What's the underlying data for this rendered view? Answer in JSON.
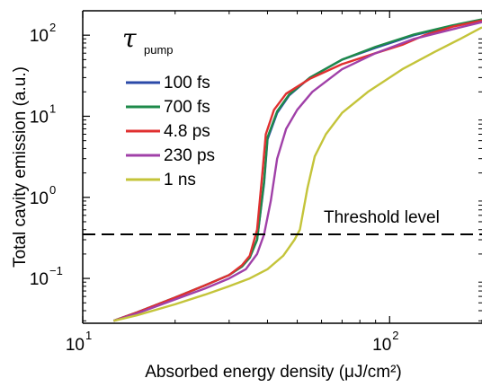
{
  "chart_data": {
    "type": "line",
    "xlabel": "Absorbed energy density (μJ/cm²)",
    "ylabel": "Total cavity emission (a.u.)",
    "x_scale": "log",
    "y_scale": "log",
    "xlim": [
      10,
      200
    ],
    "ylim": [
      0.028,
      200
    ],
    "x_ticks": [
      {
        "value": 10,
        "base": "10",
        "exp": "1"
      },
      {
        "value": 100,
        "base": "10",
        "exp": "2"
      }
    ],
    "y_ticks": [
      {
        "value": 0.1,
        "base": "10",
        "exp": "−1"
      },
      {
        "value": 1,
        "base": "10",
        "exp": "0"
      },
      {
        "value": 10,
        "base": "10",
        "exp": "1"
      },
      {
        "value": 100,
        "base": "10",
        "exp": "2"
      }
    ],
    "legend_title": {
      "symbol": "τ",
      "subscript": "pump"
    },
    "legend_position": "top-left",
    "series": [
      {
        "name": "100 fs",
        "color": "#2b4aa8",
        "points": [
          [
            12.6,
            0.03
          ],
          [
            15,
            0.038
          ],
          [
            20,
            0.058
          ],
          [
            25,
            0.082
          ],
          [
            30,
            0.11
          ],
          [
            33,
            0.14
          ],
          [
            35,
            0.18
          ],
          [
            37,
            0.3
          ],
          [
            39,
            1.5
          ],
          [
            40,
            5.2
          ],
          [
            43,
            11
          ],
          [
            47,
            18
          ],
          [
            55,
            30
          ],
          [
            70,
            50
          ],
          [
            90,
            70
          ],
          [
            120,
            100
          ],
          [
            160,
            130
          ],
          [
            200,
            155
          ]
        ]
      },
      {
        "name": "700 fs",
        "color": "#1e8a4a",
        "points": [
          [
            12.6,
            0.03
          ],
          [
            15,
            0.038
          ],
          [
            20,
            0.058
          ],
          [
            25,
            0.082
          ],
          [
            30,
            0.11
          ],
          [
            33,
            0.14
          ],
          [
            35,
            0.18
          ],
          [
            37,
            0.3
          ],
          [
            39,
            1.6
          ],
          [
            40,
            5.5
          ],
          [
            43,
            11.5
          ],
          [
            47,
            18.5
          ],
          [
            55,
            30
          ],
          [
            70,
            50
          ],
          [
            90,
            72
          ],
          [
            120,
            102
          ],
          [
            160,
            132
          ],
          [
            200,
            157
          ]
        ]
      },
      {
        "name": "4.8 ps",
        "color": "#e03030",
        "points": [
          [
            12.6,
            0.03
          ],
          [
            15,
            0.038
          ],
          [
            20,
            0.058
          ],
          [
            25,
            0.082
          ],
          [
            30,
            0.11
          ],
          [
            33,
            0.145
          ],
          [
            35,
            0.19
          ],
          [
            37,
            0.4
          ],
          [
            38.5,
            2
          ],
          [
            39.5,
            6
          ],
          [
            42,
            12
          ],
          [
            46,
            19
          ],
          [
            55,
            29
          ],
          [
            70,
            44
          ],
          [
            90,
            60
          ],
          [
            110,
            76
          ],
          [
            130,
            100
          ],
          [
            160,
            127
          ],
          [
            200,
            152
          ]
        ]
      },
      {
        "name": "230 ps",
        "color": "#a040a8",
        "points": [
          [
            12.6,
            0.03
          ],
          [
            15,
            0.037
          ],
          [
            20,
            0.055
          ],
          [
            25,
            0.075
          ],
          [
            30,
            0.1
          ],
          [
            34,
            0.13
          ],
          [
            37,
            0.2
          ],
          [
            39,
            0.35
          ],
          [
            41,
            0.9
          ],
          [
            43,
            3
          ],
          [
            46,
            7
          ],
          [
            50,
            12
          ],
          [
            56,
            20
          ],
          [
            70,
            38
          ],
          [
            90,
            60
          ],
          [
            120,
            90
          ],
          [
            160,
            118
          ],
          [
            200,
            145
          ]
        ]
      },
      {
        "name": "1 ns",
        "color": "#c4c43a",
        "points": [
          [
            12.6,
            0.03
          ],
          [
            15,
            0.035
          ],
          [
            20,
            0.048
          ],
          [
            25,
            0.063
          ],
          [
            30,
            0.08
          ],
          [
            35,
            0.1
          ],
          [
            40,
            0.13
          ],
          [
            45,
            0.19
          ],
          [
            49,
            0.3
          ],
          [
            51,
            0.4
          ],
          [
            54,
            1.3
          ],
          [
            57,
            3.2
          ],
          [
            62,
            6
          ],
          [
            70,
            11
          ],
          [
            85,
            20
          ],
          [
            110,
            38
          ],
          [
            140,
            62
          ],
          [
            170,
            90
          ],
          [
            200,
            125
          ]
        ]
      }
    ],
    "annotations": [
      {
        "text": "Threshold level",
        "y": 0.35,
        "style": "dashed"
      }
    ]
  }
}
